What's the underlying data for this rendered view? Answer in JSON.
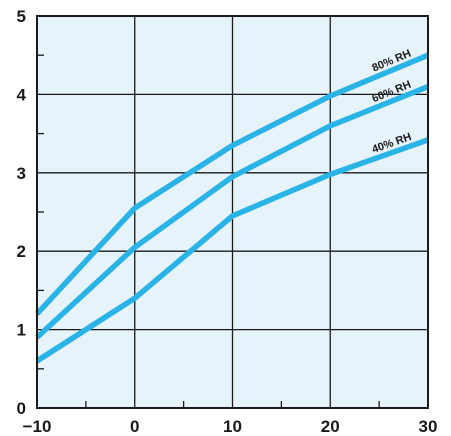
{
  "chart_data": {
    "type": "line",
    "title": "",
    "xlabel": "",
    "ylabel": "",
    "xlim": [
      -10,
      30
    ],
    "ylim": [
      0,
      5
    ],
    "x_ticks": [
      "−10",
      "0",
      "10",
      "20",
      "30"
    ],
    "y_ticks": [
      "0",
      "1",
      "2",
      "3",
      "4",
      "5"
    ],
    "grid": true,
    "x": [
      -10,
      0,
      10,
      20,
      30
    ],
    "series": [
      {
        "name": "80% RH",
        "values": [
          1.2,
          2.55,
          3.35,
          3.98,
          4.5
        ]
      },
      {
        "name": "60% RH",
        "values": [
          0.9,
          2.05,
          2.95,
          3.6,
          4.1
        ]
      },
      {
        "name": "40% RH",
        "values": [
          0.6,
          1.4,
          2.45,
          2.98,
          3.42
        ]
      }
    ],
    "colors": {
      "plot_background": "#e6f3fb",
      "series_line": "#2ab3e6",
      "grid_line": "#1a1a1a",
      "text": "#1a1a1a"
    }
  }
}
